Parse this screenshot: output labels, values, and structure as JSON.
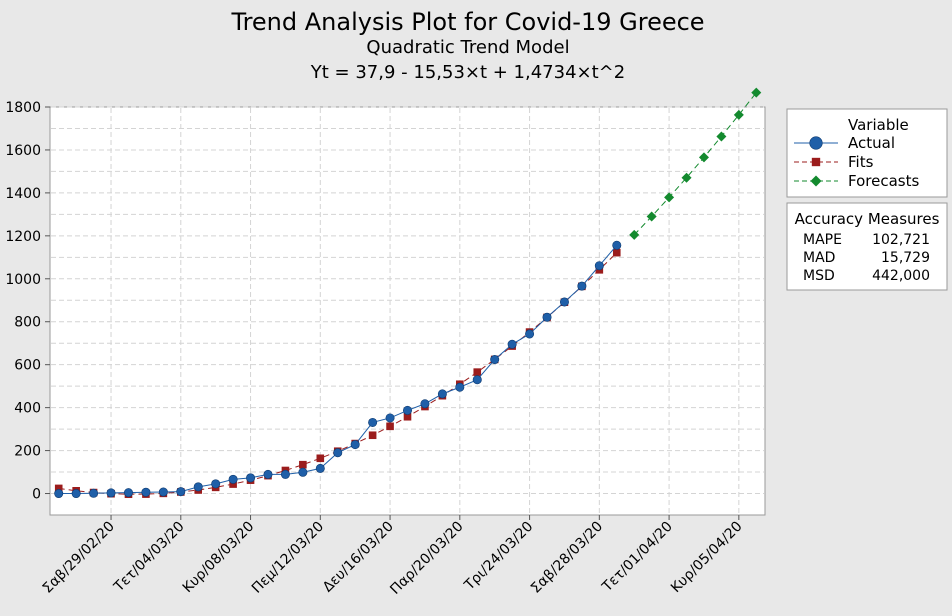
{
  "chart_data": {
    "type": "line",
    "title": "Trend Analysis Plot for Covid-19 Greece",
    "subtitle": "Quadratic Trend Model",
    "equation": "Yt = 37,9 - 15,53×t + 1,4734×t^2",
    "xlabel": "",
    "ylabel": "",
    "ylim": [
      -100,
      1800
    ],
    "xlim": [
      0.5,
      41.5
    ],
    "yticks": [
      0,
      200,
      400,
      600,
      800,
      1000,
      1200,
      1400,
      1600,
      1800
    ],
    "x_ticks": [
      {
        "t": 4,
        "label": "Σαβ/29/02/20"
      },
      {
        "t": 8,
        "label": "Τετ/04/03/20"
      },
      {
        "t": 12,
        "label": "Κυρ/08/03/20"
      },
      {
        "t": 16,
        "label": "Πεμ/12/03/20"
      },
      {
        "t": 20,
        "label": "Δευ/16/03/20"
      },
      {
        "t": 24,
        "label": "Παρ/20/03/20"
      },
      {
        "t": 28,
        "label": "Τρι/24/03/20"
      },
      {
        "t": 32,
        "label": "Σαβ/28/03/20"
      },
      {
        "t": 36,
        "label": "Τετ/01/04/20"
      },
      {
        "t": 40,
        "label": "Κυρ/05/04/20"
      }
    ],
    "grid": true,
    "legend_position": "right",
    "legend_title": "Variable",
    "series": [
      {
        "name": "Actual",
        "color": "#1f5fa8",
        "marker": "circle",
        "line": "solid",
        "x": [
          1,
          2,
          3,
          4,
          5,
          6,
          7,
          8,
          9,
          10,
          11,
          12,
          13,
          14,
          15,
          16,
          17,
          18,
          19,
          20,
          21,
          22,
          23,
          24,
          25,
          26,
          27,
          28,
          29,
          30,
          31,
          32,
          33,
          34
        ],
        "values": [
          0,
          0,
          1,
          3,
          4,
          6,
          7,
          9,
          31,
          45,
          66,
          73,
          89,
          89,
          99,
          117,
          190,
          228,
          331,
          352,
          387,
          418,
          464,
          495,
          530,
          624,
          695,
          743,
          821,
          892,
          966,
          1061,
          1156,
          null
        ]
      },
      {
        "name": "Fits",
        "color": "#9b1c1c",
        "marker": "square",
        "line": "dashed",
        "x": [
          1,
          2,
          3,
          4,
          5,
          6,
          7,
          8,
          9,
          10,
          11,
          12,
          13,
          14,
          15,
          16,
          17,
          18,
          19,
          20,
          21,
          22,
          23,
          24,
          25,
          26,
          27,
          28,
          29,
          30,
          31,
          32,
          33
        ],
        "values": [
          23.8,
          12.7,
          4.5,
          -0.8,
          -3.2,
          -2.7,
          0.8,
          7.2,
          16.5,
          28.8,
          44.0,
          62.2,
          83.3,
          107.3,
          134.3,
          164.1,
          197.0,
          232.7,
          271.4,
          313.0,
          357.6,
          405.1,
          455.6,
          508.9,
          565.3,
          624.5,
          686.7,
          751.9,
          819.9,
          891.0,
          964.9,
          1041.8,
          1121.7
        ]
      },
      {
        "name": "Forecasts",
        "color": "#138a2e",
        "marker": "diamond",
        "line": "dashed",
        "x": [
          34,
          35,
          36,
          37,
          38,
          39,
          40,
          41
        ],
        "values": [
          1204.5,
          1290.3,
          1379.0,
          1470.7,
          1565.3,
          1662.9,
          1763.5,
          1867.0
        ]
      }
    ],
    "accuracy_measures": {
      "title": "Accuracy Measures",
      "rows": [
        {
          "label": "MAPE",
          "value": "102,721"
        },
        {
          "label": "MAD",
          "value": "15,729"
        },
        {
          "label": "MSD",
          "value": "442,000"
        }
      ]
    }
  }
}
